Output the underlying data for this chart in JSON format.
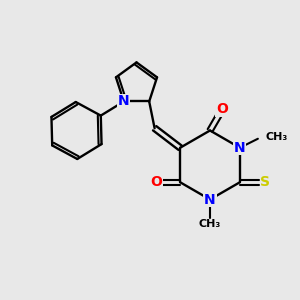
{
  "bg_color": "#e8e8e8",
  "bond_color": "#000000",
  "N_color": "#0000ff",
  "O_color": "#ff0000",
  "S_color": "#cccc00",
  "font_size_atom": 10,
  "fig_size": [
    3.0,
    3.0
  ],
  "dpi": 100,
  "xlim": [
    0,
    10
  ],
  "ylim": [
    0,
    10
  ]
}
